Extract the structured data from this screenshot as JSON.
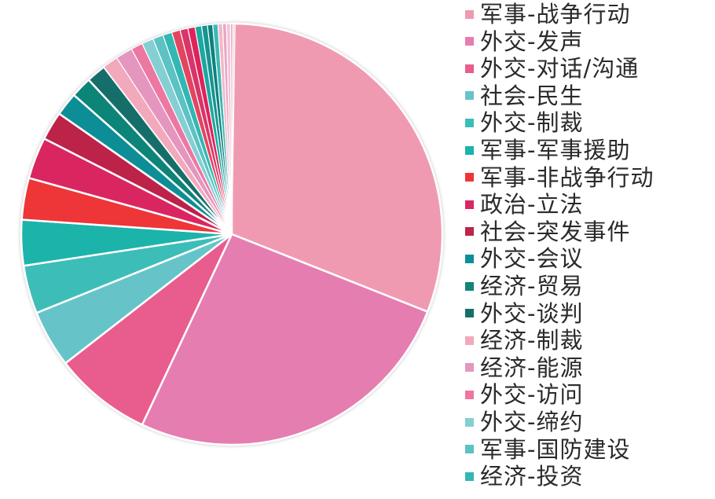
{
  "chart_data": {
    "type": "pie",
    "start_angle": "top",
    "direction": "clockwise",
    "legend_position": "right",
    "legend": [
      "军事-战争行动",
      "外交-发声",
      "外交-对话/沟通",
      "社会-民生",
      "外交-制裁",
      "军事-军事援助",
      "军事-非战争行动",
      "政治-立法",
      "社会-突发事件",
      "外交-会议",
      "经济-贸易",
      "外交-谈判",
      "经济-制裁",
      "经济-能源",
      "外交-访问",
      "外交-缔约",
      "军事-国防建设",
      "经济-投资"
    ],
    "slices": [
      {
        "label": "军事-战争行动",
        "value": 31.0,
        "color": "#F09AB1"
      },
      {
        "label": "外交-发声",
        "value": 26.0,
        "color": "#E57DB0"
      },
      {
        "label": "外交-对话/沟通",
        "value": 7.5,
        "color": "#E85C8E"
      },
      {
        "label": "社会-民生",
        "value": 4.4,
        "color": "#66C4C9"
      },
      {
        "label": "外交-制裁",
        "value": 3.7,
        "color": "#3DBDB8"
      },
      {
        "label": "军事-军事援助",
        "value": 3.5,
        "color": "#1BB3AA"
      },
      {
        "label": "军事-非战争行动",
        "value": 3.2,
        "color": "#EE3438"
      },
      {
        "label": "政治-立法",
        "value": 3.2,
        "color": "#DA2761"
      },
      {
        "label": "社会-突发事件",
        "value": 2.2,
        "color": "#BD2449"
      },
      {
        "label": "外交-会议",
        "value": 1.8,
        "color": "#0C8E96"
      },
      {
        "label": "经济-贸易",
        "value": 1.6,
        "color": "#118478"
      },
      {
        "label": "外交-谈判",
        "value": 1.5,
        "color": "#166E6B"
      },
      {
        "label": "经济-制裁",
        "value": 1.2,
        "color": "#F2A9BC"
      },
      {
        "label": "经济-能源",
        "value": 1.3,
        "color": "#E596BF"
      },
      {
        "label": "外交-访问",
        "value": 0.9,
        "color": "#EC77A1"
      },
      {
        "label": "外交-缔约",
        "value": 0.9,
        "color": "#84CFD3"
      },
      {
        "label": "军事-国防建设",
        "value": 0.8,
        "color": "#5CC2C3"
      },
      {
        "label": "经济-投资",
        "value": 0.7,
        "color": "#33B7B3"
      },
      {
        "value": 0.65,
        "color": "#E3445E"
      },
      {
        "value": 0.6,
        "color": "#D8346B"
      },
      {
        "value": 0.55,
        "color": "#E0235A"
      },
      {
        "value": 0.5,
        "color": "#1AA8A0"
      },
      {
        "value": 0.45,
        "color": "#17958F"
      },
      {
        "value": 0.4,
        "color": "#10827B"
      },
      {
        "value": 0.4,
        "color": "#3CB8B5"
      },
      {
        "value": 0.35,
        "color": "#F4B7C6"
      },
      {
        "value": 0.3,
        "color": "#E9A6C8"
      },
      {
        "value": 0.3,
        "color": "#F3C2D0"
      },
      {
        "value": 0.2,
        "color": "#EBB5CE"
      },
      {
        "value": 0.15,
        "color": "#F0D0DC"
      }
    ]
  }
}
